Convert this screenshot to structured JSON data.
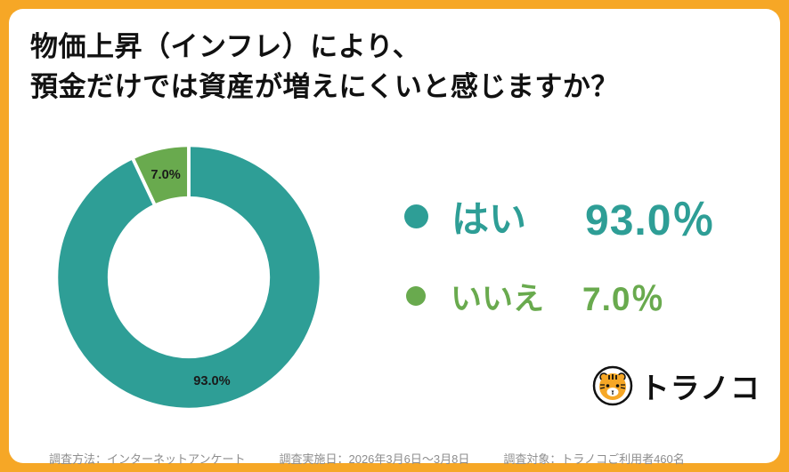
{
  "title": {
    "line1": "物価上昇（インフレ）により、",
    "line2": "預金だけでは資産が増えにくいと感じますか？"
  },
  "chart_data": {
    "type": "pie",
    "subtype": "donut",
    "title": "物価上昇（インフレ）により、預金だけでは資産が増えにくいと感じますか？",
    "categories": [
      "はい",
      "いいえ"
    ],
    "values": [
      93.0,
      7.0
    ],
    "slice_labels": [
      "93.0%",
      "7.0%"
    ],
    "colors": [
      "#2e9e96",
      "#69aa4e"
    ],
    "legend_position": "right"
  },
  "legend": {
    "items": [
      {
        "label": "はい",
        "value": "93.0％",
        "color": "#2e9e96"
      },
      {
        "label": "いいえ",
        "value": "7.0％",
        "color": "#69aa4e"
      }
    ]
  },
  "logo": {
    "text": "トラノコ"
  },
  "footer": {
    "method": "調査方法：インターネットアンケート",
    "date": "調査実施日：2026年3月6日～3月8日",
    "target": "調査対象：トラノコご利用者460名"
  },
  "colors": {
    "background": "#f6a726",
    "card": "#ffffff",
    "title_text": "#111111",
    "footer_text": "#8d8d8d",
    "slice_label_text": "#1a1a1a"
  }
}
